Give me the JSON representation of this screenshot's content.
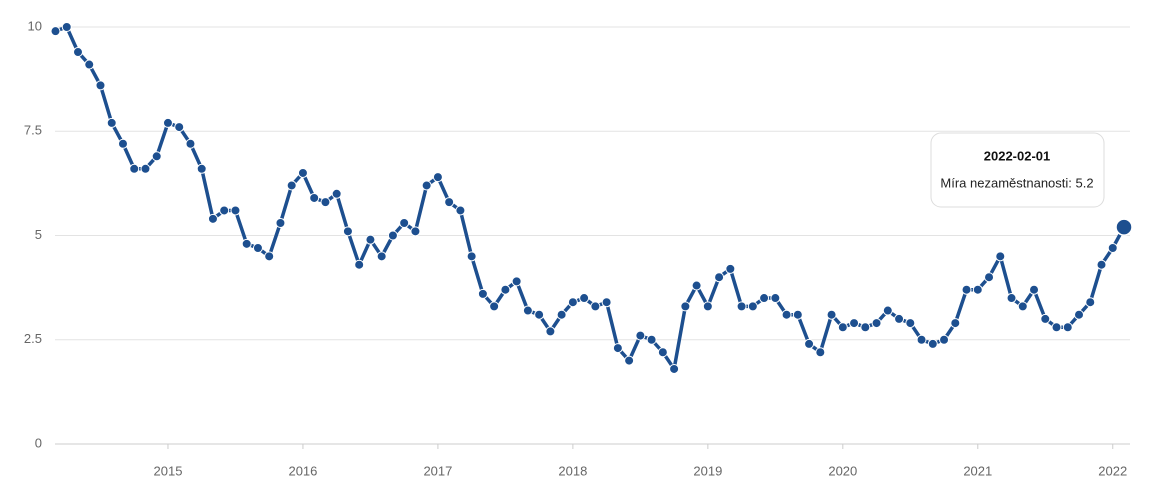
{
  "chart_data": {
    "type": "line",
    "x": [
      "2014-03-01",
      "2014-04-01",
      "2014-05-01",
      "2014-06-01",
      "2014-07-01",
      "2014-08-01",
      "2014-09-01",
      "2014-10-01",
      "2014-11-01",
      "2014-12-01",
      "2015-01-01",
      "2015-02-01",
      "2015-03-01",
      "2015-04-01",
      "2015-05-01",
      "2015-06-01",
      "2015-07-01",
      "2015-08-01",
      "2015-09-01",
      "2015-10-01",
      "2015-11-01",
      "2015-12-01",
      "2016-01-01",
      "2016-02-01",
      "2016-03-01",
      "2016-04-01",
      "2016-05-01",
      "2016-06-01",
      "2016-07-01",
      "2016-08-01",
      "2016-09-01",
      "2016-10-01",
      "2016-11-01",
      "2016-12-01",
      "2017-01-01",
      "2017-02-01",
      "2017-03-01",
      "2017-04-01",
      "2017-05-01",
      "2017-06-01",
      "2017-07-01",
      "2017-08-01",
      "2017-09-01",
      "2017-10-01",
      "2017-11-01",
      "2017-12-01",
      "2018-01-01",
      "2018-02-01",
      "2018-03-01",
      "2018-04-01",
      "2018-05-01",
      "2018-06-01",
      "2018-07-01",
      "2018-08-01",
      "2018-09-01",
      "2018-10-01",
      "2018-11-01",
      "2018-12-01",
      "2019-01-01",
      "2019-02-01",
      "2019-03-01",
      "2019-04-01",
      "2019-05-01",
      "2019-06-01",
      "2019-07-01",
      "2019-08-01",
      "2019-09-01",
      "2019-10-01",
      "2019-11-01",
      "2019-12-01",
      "2020-01-01",
      "2020-02-01",
      "2020-03-01",
      "2020-04-01",
      "2020-05-01",
      "2020-06-01",
      "2020-07-01",
      "2020-08-01",
      "2020-09-01",
      "2020-10-01",
      "2020-11-01",
      "2020-12-01",
      "2021-01-01",
      "2021-02-01",
      "2021-03-01",
      "2021-04-01",
      "2021-05-01",
      "2021-06-01",
      "2021-07-01",
      "2021-08-01",
      "2021-09-01",
      "2021-10-01",
      "2021-11-01",
      "2021-12-01",
      "2022-01-01",
      "2022-02-01"
    ],
    "series": [
      {
        "name": "Míra nezaměstnanosti",
        "color": "#1d4f8f",
        "values": [
          9.9,
          10.0,
          9.4,
          9.1,
          8.6,
          7.7,
          7.2,
          6.6,
          6.6,
          6.9,
          7.7,
          7.6,
          7.2,
          6.6,
          5.4,
          5.6,
          5.6,
          4.8,
          4.7,
          4.5,
          5.3,
          6.2,
          6.5,
          5.9,
          5.8,
          6.0,
          5.1,
          4.3,
          4.9,
          4.5,
          5.0,
          5.3,
          5.1,
          6.2,
          6.4,
          5.8,
          5.6,
          4.5,
          3.6,
          3.3,
          3.7,
          3.9,
          3.2,
          3.1,
          2.7,
          3.1,
          3.4,
          3.5,
          3.3,
          3.4,
          2.3,
          2.0,
          2.6,
          2.5,
          2.2,
          1.8,
          3.3,
          3.8,
          3.3,
          4.0,
          4.2,
          3.3,
          3.3,
          3.5,
          3.5,
          3.1,
          3.1,
          2.4,
          2.2,
          3.1,
          2.8,
          2.9,
          2.8,
          2.9,
          3.2,
          3.0,
          2.9,
          2.5,
          2.4,
          2.5,
          2.9,
          3.7,
          3.7,
          4.0,
          4.5,
          3.5,
          3.3,
          3.7,
          3.0,
          2.8,
          2.8,
          3.1,
          3.4,
          4.3,
          4.7,
          5.2
        ]
      }
    ],
    "xlim": [
      2014.1,
      2022.15
    ],
    "xticks": [
      2015,
      2016,
      2017,
      2018,
      2019,
      2020,
      2021,
      2022
    ],
    "ylim": [
      0,
      10
    ],
    "yticks": [
      0,
      2.5,
      5,
      7.5,
      10
    ],
    "grid": true,
    "tooltip": {
      "text": "Míra nezaměstnanosti: 5.2"
    }
  }
}
